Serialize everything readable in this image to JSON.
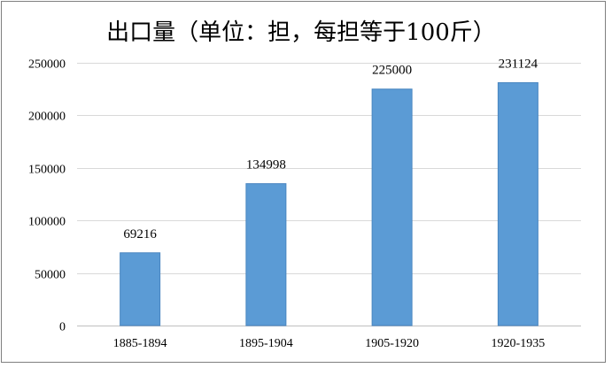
{
  "chart_data": {
    "type": "bar",
    "title": "出口量（单位：担，每担等于100斤）",
    "categories": [
      "1885-1894",
      "1895-1904",
      "1905-1920",
      "1920-1935"
    ],
    "values": [
      69216,
      134998,
      225000,
      231124
    ],
    "data_labels": [
      "69216",
      "134998",
      "225000",
      "231124"
    ],
    "ylim": [
      0,
      250000
    ],
    "y_ticks": [
      0,
      50000,
      100000,
      150000,
      200000,
      250000
    ],
    "y_tick_labels": [
      "0",
      "50000",
      "100000",
      "150000",
      "200000",
      "250000"
    ],
    "xlabel": "",
    "ylabel": "",
    "grid": true,
    "legend": "none",
    "bar_color": "#5b9bd5",
    "bar_edge_color": "#4a86c0"
  }
}
